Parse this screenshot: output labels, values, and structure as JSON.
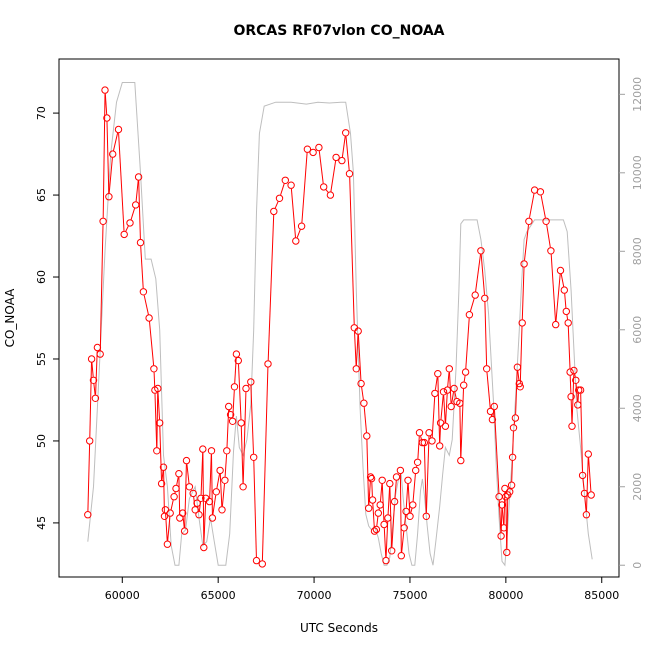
{
  "chart_data": {
    "type": "line",
    "title": "ORCAS RF07vlon CO_NOAA",
    "xlabel": "UTC Seconds",
    "ylabel": "CO_NOAA",
    "xlim": [
      56700,
      85900
    ],
    "ylim": [
      41.7,
      73.3
    ],
    "y2lim": [
      -300,
      12900
    ],
    "x_ticks": [
      60000,
      65000,
      70000,
      75000,
      80000,
      85000
    ],
    "y_ticks": [
      45,
      50,
      55,
      60,
      65,
      70
    ],
    "y2_ticks": [
      0,
      2000,
      4000,
      6000,
      8000,
      10000,
      12000
    ],
    "colors": {
      "primary": "#ff0000",
      "secondary": "#bebebe"
    },
    "series": [
      {
        "axis": "left",
        "marker": "circle",
        "points": [
          [
            58200,
            45.5
          ],
          [
            58300,
            50.0
          ],
          [
            58400,
            55.0
          ],
          [
            58500,
            53.7
          ],
          [
            58600,
            52.6
          ],
          [
            58700,
            55.7
          ],
          [
            58850,
            55.3
          ],
          [
            59000,
            63.4
          ],
          [
            59100,
            71.4
          ],
          [
            59200,
            69.7
          ],
          [
            59300,
            64.9
          ],
          [
            59500,
            67.5
          ],
          [
            59800,
            69.0
          ],
          [
            60100,
            62.6
          ],
          [
            60400,
            63.3
          ],
          [
            60700,
            64.4
          ],
          [
            60850,
            66.1
          ],
          [
            60950,
            62.1
          ],
          [
            61100,
            59.1
          ],
          [
            61400,
            57.5
          ],
          [
            61650,
            54.4
          ],
          [
            61700,
            53.1
          ],
          [
            61800,
            49.4
          ],
          [
            61850,
            53.2
          ],
          [
            61950,
            51.1
          ],
          [
            62050,
            47.4
          ],
          [
            62150,
            48.4
          ],
          [
            62200,
            45.4
          ],
          [
            62250,
            45.8
          ],
          [
            62350,
            43.7
          ],
          [
            62500,
            45.6
          ],
          [
            62700,
            46.6
          ],
          [
            62800,
            47.1
          ],
          [
            62950,
            48.0
          ],
          [
            63000,
            45.3
          ],
          [
            63150,
            45.6
          ],
          [
            63250,
            44.5
          ],
          [
            63350,
            48.8
          ],
          [
            63500,
            47.2
          ],
          [
            63700,
            46.8
          ],
          [
            63800,
            45.8
          ],
          [
            63900,
            46.2
          ],
          [
            64000,
            45.5
          ],
          [
            64100,
            46.5
          ],
          [
            64200,
            49.5
          ],
          [
            64250,
            43.5
          ],
          [
            64350,
            46.5
          ],
          [
            64550,
            46.3
          ],
          [
            64650,
            49.4
          ],
          [
            64700,
            45.3
          ],
          [
            64900,
            46.9
          ],
          [
            65100,
            48.2
          ],
          [
            65200,
            45.8
          ],
          [
            65350,
            47.6
          ],
          [
            65450,
            49.4
          ],
          [
            65550,
            52.1
          ],
          [
            65650,
            51.6
          ],
          [
            65750,
            51.2
          ],
          [
            65850,
            53.3
          ],
          [
            65950,
            55.3
          ],
          [
            66050,
            54.9
          ],
          [
            66200,
            51.1
          ],
          [
            66300,
            47.2
          ],
          [
            66450,
            53.2
          ],
          [
            66700,
            53.6
          ],
          [
            66850,
            49.0
          ],
          [
            67000,
            42.7
          ],
          [
            67300,
            42.5
          ],
          [
            67600,
            54.7
          ],
          [
            67900,
            64.0
          ],
          [
            68200,
            64.8
          ],
          [
            68500,
            65.9
          ],
          [
            68800,
            65.6
          ],
          [
            69050,
            62.2
          ],
          [
            69350,
            63.1
          ],
          [
            69650,
            67.8
          ],
          [
            69950,
            67.6
          ],
          [
            70250,
            67.9
          ],
          [
            70500,
            65.5
          ],
          [
            70850,
            65.0
          ],
          [
            71150,
            67.3
          ],
          [
            71450,
            67.1
          ],
          [
            71650,
            68.8
          ],
          [
            71850,
            66.3
          ],
          [
            72100,
            56.9
          ],
          [
            72200,
            54.4
          ],
          [
            72300,
            56.7
          ],
          [
            72450,
            53.5
          ],
          [
            72600,
            52.3
          ],
          [
            72750,
            50.3
          ],
          [
            72850,
            45.9
          ],
          [
            72950,
            47.8
          ],
          [
            73000,
            47.7
          ],
          [
            73050,
            46.4
          ],
          [
            73150,
            44.5
          ],
          [
            73250,
            44.6
          ],
          [
            73350,
            45.6
          ],
          [
            73450,
            46.1
          ],
          [
            73550,
            47.6
          ],
          [
            73650,
            44.9
          ],
          [
            73750,
            42.7
          ],
          [
            73850,
            45.3
          ],
          [
            73950,
            47.4
          ],
          [
            74050,
            43.3
          ],
          [
            74200,
            46.3
          ],
          [
            74300,
            47.8
          ],
          [
            74500,
            48.2
          ],
          [
            74550,
            43.0
          ],
          [
            74700,
            44.7
          ],
          [
            74800,
            45.7
          ],
          [
            74900,
            47.6
          ],
          [
            75000,
            45.4
          ],
          [
            75150,
            46.1
          ],
          [
            75300,
            48.2
          ],
          [
            75400,
            48.7
          ],
          [
            75500,
            50.5
          ],
          [
            75650,
            49.9
          ],
          [
            75750,
            49.9
          ],
          [
            75850,
            45.4
          ],
          [
            76000,
            50.5
          ],
          [
            76150,
            50.0
          ],
          [
            76300,
            52.9
          ],
          [
            76450,
            54.1
          ],
          [
            76550,
            49.7
          ],
          [
            76600,
            51.1
          ],
          [
            76750,
            53.0
          ],
          [
            76850,
            50.9
          ],
          [
            76950,
            53.1
          ],
          [
            77050,
            54.4
          ],
          [
            77150,
            52.1
          ],
          [
            77300,
            53.2
          ],
          [
            77450,
            52.4
          ],
          [
            77600,
            52.3
          ],
          [
            77650,
            48.8
          ],
          [
            77800,
            53.4
          ],
          [
            77900,
            54.2
          ],
          [
            78100,
            57.7
          ],
          [
            78400,
            58.9
          ],
          [
            78700,
            61.6
          ],
          [
            78900,
            58.7
          ],
          [
            79000,
            54.4
          ],
          [
            79200,
            51.8
          ],
          [
            79300,
            51.3
          ],
          [
            79400,
            52.1
          ],
          [
            79650,
            46.6
          ],
          [
            79750,
            44.2
          ],
          [
            79800,
            46.1
          ],
          [
            79900,
            44.7
          ],
          [
            79950,
            47.1
          ],
          [
            80000,
            46.6
          ],
          [
            80050,
            43.2
          ],
          [
            80100,
            46.7
          ],
          [
            80200,
            46.9
          ],
          [
            80300,
            47.3
          ],
          [
            80350,
            49.0
          ],
          [
            80400,
            50.8
          ],
          [
            80500,
            51.4
          ],
          [
            80600,
            54.5
          ],
          [
            80700,
            53.5
          ],
          [
            80750,
            53.3
          ],
          [
            80850,
            57.2
          ],
          [
            80950,
            60.8
          ],
          [
            81200,
            63.4
          ],
          [
            81500,
            65.3
          ],
          [
            81800,
            65.2
          ],
          [
            82100,
            63.4
          ],
          [
            82350,
            61.6
          ],
          [
            82600,
            57.1
          ],
          [
            82850,
            60.4
          ],
          [
            83050,
            59.2
          ],
          [
            83150,
            57.9
          ],
          [
            83250,
            57.2
          ],
          [
            83350,
            54.2
          ],
          [
            83400,
            52.7
          ],
          [
            83450,
            50.9
          ],
          [
            83550,
            54.3
          ],
          [
            83650,
            53.7
          ],
          [
            83750,
            52.2
          ],
          [
            83800,
            53.1
          ],
          [
            83900,
            53.1
          ],
          [
            84000,
            47.9
          ],
          [
            84100,
            46.8
          ],
          [
            84200,
            45.5
          ],
          [
            84300,
            49.2
          ],
          [
            84450,
            46.7
          ]
        ]
      },
      {
        "axis": "right",
        "marker": "none",
        "points": [
          [
            58200,
            600
          ],
          [
            58500,
            2000
          ],
          [
            58800,
            5000
          ],
          [
            59100,
            8000
          ],
          [
            59400,
            10500
          ],
          [
            59700,
            11800
          ],
          [
            60000,
            12300
          ],
          [
            60300,
            12300
          ],
          [
            60650,
            12300
          ],
          [
            60950,
            10000
          ],
          [
            61200,
            7800
          ],
          [
            61500,
            7800
          ],
          [
            61750,
            7300
          ],
          [
            61950,
            6000
          ],
          [
            62150,
            2800
          ],
          [
            62350,
            2000
          ],
          [
            62550,
            500
          ],
          [
            62750,
            0
          ],
          [
            62950,
            0
          ],
          [
            63100,
            800
          ],
          [
            63300,
            900
          ],
          [
            63500,
            1700
          ],
          [
            63700,
            1900
          ],
          [
            63800,
            2000
          ],
          [
            64000,
            1200
          ],
          [
            64200,
            500
          ],
          [
            64400,
            600
          ],
          [
            64600,
            1200
          ],
          [
            64800,
            600
          ],
          [
            65000,
            0
          ],
          [
            65200,
            0
          ],
          [
            65400,
            0
          ],
          [
            65600,
            800
          ],
          [
            65800,
            2900
          ],
          [
            65950,
            3800
          ],
          [
            66100,
            3000
          ],
          [
            66300,
            2800
          ],
          [
            66500,
            3200
          ],
          [
            66700,
            4100
          ],
          [
            66850,
            6000
          ],
          [
            67000,
            9000
          ],
          [
            67150,
            11000
          ],
          [
            67400,
            11700
          ],
          [
            68000,
            11800
          ],
          [
            68800,
            11800
          ],
          [
            69600,
            11750
          ],
          [
            70200,
            11800
          ],
          [
            70800,
            11780
          ],
          [
            71400,
            11800
          ],
          [
            71650,
            11800
          ],
          [
            71900,
            11000
          ],
          [
            72050,
            10000
          ],
          [
            72200,
            7000
          ],
          [
            72400,
            4000
          ],
          [
            72550,
            2500
          ],
          [
            72700,
            1300
          ],
          [
            72850,
            1000
          ],
          [
            73000,
            900
          ],
          [
            73150,
            1000
          ],
          [
            73350,
            700
          ],
          [
            73500,
            300
          ],
          [
            73650,
            0
          ],
          [
            73800,
            0
          ],
          [
            73950,
            200
          ],
          [
            74100,
            1000
          ],
          [
            74250,
            1800
          ],
          [
            74400,
            2200
          ],
          [
            74550,
            2300
          ],
          [
            74650,
            1700
          ],
          [
            74800,
            1000
          ],
          [
            74950,
            300
          ],
          [
            75100,
            0
          ],
          [
            75250,
            0
          ],
          [
            75400,
            800
          ],
          [
            75550,
            1900
          ],
          [
            75650,
            2200
          ],
          [
            75750,
            1800
          ],
          [
            75900,
            1000
          ],
          [
            76050,
            300
          ],
          [
            76200,
            0
          ],
          [
            76350,
            600
          ],
          [
            76550,
            1500
          ],
          [
            76700,
            2300
          ],
          [
            76850,
            3000
          ],
          [
            77050,
            2800
          ],
          [
            77200,
            3200
          ],
          [
            77400,
            5000
          ],
          [
            77550,
            7000
          ],
          [
            77650,
            8700
          ],
          [
            77800,
            8800
          ],
          [
            78100,
            8800
          ],
          [
            78500,
            8800
          ],
          [
            78700,
            8300
          ],
          [
            78900,
            7500
          ],
          [
            79100,
            6400
          ],
          [
            79350,
            4200
          ],
          [
            79500,
            2500
          ],
          [
            79650,
            1200
          ],
          [
            79800,
            100
          ],
          [
            79950,
            0
          ],
          [
            80100,
            1000
          ],
          [
            80300,
            2500
          ],
          [
            80500,
            4200
          ],
          [
            80700,
            6000
          ],
          [
            80800,
            7000
          ],
          [
            80950,
            8300
          ],
          [
            81100,
            8500
          ],
          [
            81500,
            8800
          ],
          [
            82200,
            8800
          ],
          [
            82800,
            8800
          ],
          [
            83000,
            8800
          ],
          [
            83200,
            8500
          ],
          [
            83400,
            7000
          ],
          [
            83550,
            5500
          ],
          [
            83700,
            4000
          ],
          [
            83900,
            3000
          ],
          [
            84100,
            1800
          ],
          [
            84300,
            800
          ],
          [
            84500,
            150
          ]
        ]
      }
    ]
  }
}
